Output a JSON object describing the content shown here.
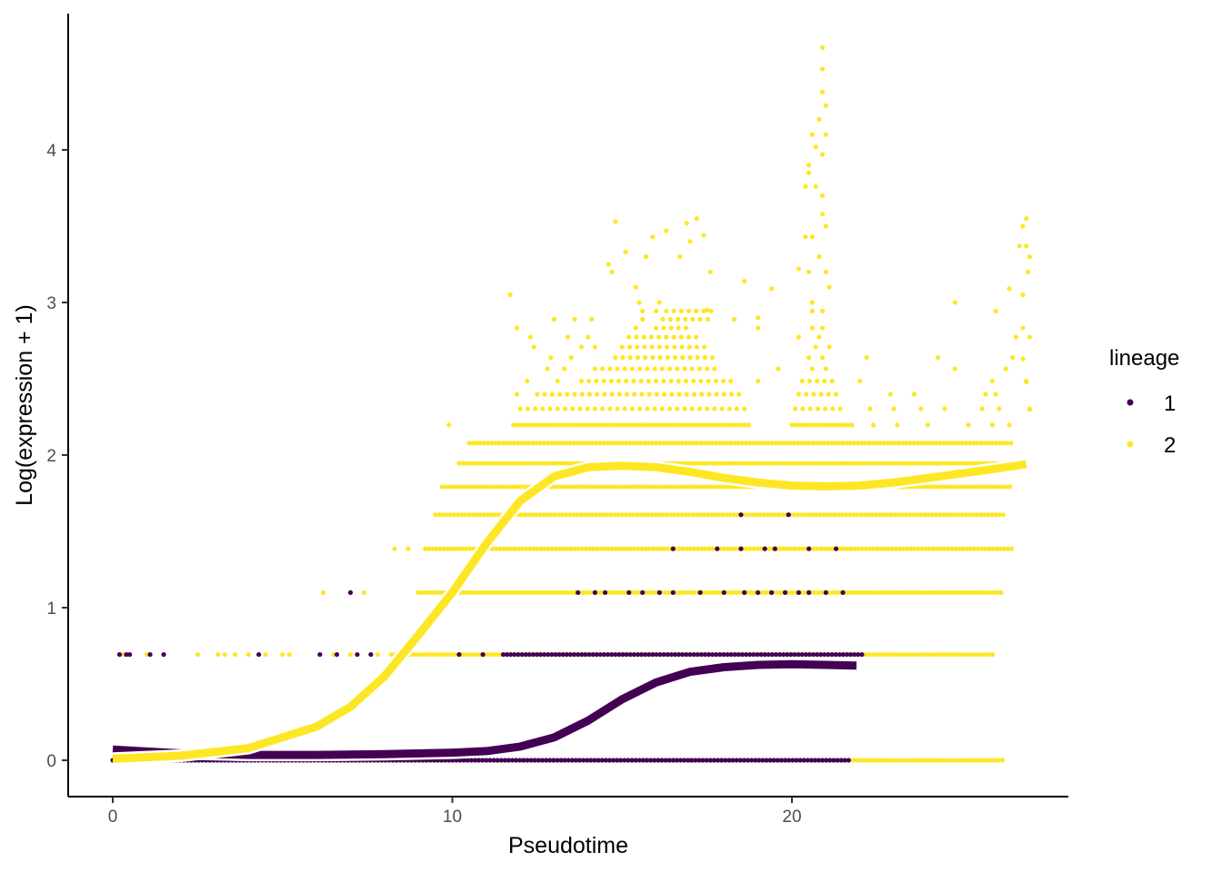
{
  "chart_data": {
    "type": "scatter",
    "title": "",
    "xlabel": "Pseudotime",
    "ylabel": "Log(expression + 1)",
    "xlim": [
      -1.3,
      28.1
    ],
    "ylim": [
      -0.23,
      4.87
    ],
    "xticks": [
      0,
      10,
      20
    ],
    "xtick_labels": [
      "0",
      "10",
      "20"
    ],
    "yticks": [
      0,
      1,
      2,
      3,
      4
    ],
    "ytick_labels": [
      "0",
      "1",
      "2",
      "3",
      "4"
    ],
    "grid": false,
    "legend": {
      "title": "lineage",
      "position": "right",
      "entries": [
        "1",
        "2"
      ]
    },
    "colors": {
      "1": "#440154",
      "2": "#FDE725"
    },
    "series": [
      {
        "name": "2",
        "levels": [
          {
            "y": 0,
            "runs": [
              [
                21.8,
                26.2
              ]
            ],
            "points": [
              16.1,
              17.0,
              17.9,
              19.4,
              20.8,
              6.5,
              9.5,
              12.1
            ]
          },
          {
            "y": 0.693,
            "runs": [
              [
                8.2,
                26.0
              ]
            ],
            "points": [
              0.3,
              1.0,
              2.5,
              3.1,
              3.3,
              3.6,
              4.0,
              4.5,
              5.0,
              5.2,
              6.5,
              7.0,
              7.8
            ]
          },
          {
            "y": 1.099,
            "runs": [
              [
                9.0,
                26.2
              ]
            ],
            "points": [
              6.2,
              7.4
            ]
          },
          {
            "y": 1.386,
            "runs": [
              [
                9.2,
                26.5
              ]
            ],
            "points": [
              8.3,
              8.7
            ]
          },
          {
            "y": 1.609,
            "runs": [
              [
                9.5,
                26.3
              ]
            ],
            "points": []
          },
          {
            "y": 1.792,
            "runs": [
              [
                9.7,
                26.5
              ]
            ],
            "points": []
          },
          {
            "y": 1.946,
            "runs": [
              [
                10.2,
                26.7
              ]
            ],
            "points": []
          },
          {
            "y": 2.079,
            "runs": [
              [
                10.5,
                26.5
              ]
            ],
            "points": []
          },
          {
            "y": 2.197,
            "runs": [
              [
                11.8,
                18.8
              ],
              [
                20.0,
                21.8
              ]
            ],
            "points": [
              9.9,
              22.4,
              23.1,
              24.0,
              25.2,
              25.9,
              26.4
            ]
          },
          {
            "y": 2.303,
            "runs": [
              [
                12.0,
                18.6
              ],
              [
                20.1,
                21.6
              ]
            ],
            "points": [
              22.3,
              23.0,
              23.8,
              24.5,
              25.6,
              26.1,
              27.0
            ]
          },
          {
            "y": 2.398,
            "runs": [
              [
                12.5,
                18.5
              ],
              [
                20.2,
                21.5
              ]
            ],
            "points": [
              11.9,
              22.9,
              23.6,
              25.7,
              26.0
            ]
          },
          {
            "y": 2.485,
            "runs": [
              [
                13.8,
                18.2
              ],
              [
                20.3,
                21.3
              ]
            ],
            "points": [
              12.2,
              13.1,
              19.0,
              22.0,
              25.9,
              26.9
            ]
          },
          {
            "y": 2.565,
            "runs": [
              [
                14.2,
                17.8
              ]
            ],
            "points": [
              12.8,
              13.3,
              19.6,
              20.6,
              21.0,
              24.8,
              26.3
            ]
          },
          {
            "y": 2.639,
            "runs": [
              [
                14.8,
                17.8
              ]
            ],
            "points": [
              12.9,
              13.5,
              20.5,
              20.9,
              22.2,
              24.3,
              26.5
            ]
          },
          {
            "y": 2.708,
            "runs": [
              [
                15.0,
                17.5
              ]
            ],
            "points": [
              12.4,
              13.8,
              14.2,
              20.7,
              21.1
            ]
          },
          {
            "y": 2.773,
            "runs": [
              [
                15.2,
                17.3
              ]
            ],
            "points": [
              12.3,
              13.4,
              14.0,
              20.2,
              20.8,
              26.6,
              27.0
            ]
          },
          {
            "y": 2.833,
            "runs": [
              [
                16.0,
                17.0
              ]
            ],
            "points": [
              11.9,
              15.4,
              19.0,
              20.6,
              20.9,
              26.8
            ]
          },
          {
            "y": 2.89,
            "runs": [
              [
                16.2,
                17.6
              ]
            ],
            "points": [
              13.0,
              13.6,
              14.1,
              15.6,
              18.3
            ]
          },
          {
            "y": 2.944,
            "runs": [
              [
                16.3,
                17.7
              ]
            ],
            "points": [
              15.6,
              16.0,
              20.6,
              20.9,
              26.0
            ]
          }
        ],
        "extra_points": [
          [
            20.9,
            4.67
          ],
          [
            20.9,
            4.53
          ],
          [
            20.9,
            4.38
          ],
          [
            21.0,
            4.29
          ],
          [
            20.8,
            4.2
          ],
          [
            20.6,
            4.1
          ],
          [
            21.0,
            4.1
          ],
          [
            20.7,
            4.02
          ],
          [
            20.5,
            3.9
          ],
          [
            20.5,
            3.85
          ],
          [
            20.9,
            3.97
          ],
          [
            20.4,
            3.76
          ],
          [
            20.7,
            3.76
          ],
          [
            20.9,
            3.7
          ],
          [
            20.9,
            3.58
          ],
          [
            21.0,
            3.5
          ],
          [
            20.4,
            3.43
          ],
          [
            20.6,
            3.43
          ],
          [
            20.8,
            3.3
          ],
          [
            20.2,
            3.22
          ],
          [
            20.5,
            3.2
          ],
          [
            21.0,
            3.2
          ],
          [
            21.1,
            3.1
          ],
          [
            20.6,
            3.0
          ],
          [
            26.9,
            3.55
          ],
          [
            26.8,
            3.5
          ],
          [
            26.7,
            3.37
          ],
          [
            26.9,
            3.37
          ],
          [
            27.0,
            3.3
          ],
          [
            26.95,
            3.2
          ],
          [
            26.8,
            3.05
          ],
          [
            26.4,
            3.09
          ],
          [
            26.8,
            2.63
          ],
          [
            26.9,
            2.48
          ],
          [
            27.0,
            2.3
          ],
          [
            24.8,
            3.0
          ],
          [
            11.7,
            3.05
          ],
          [
            14.8,
            3.53
          ],
          [
            15.1,
            3.33
          ],
          [
            14.7,
            3.2
          ],
          [
            15.4,
            3.1
          ],
          [
            15.5,
            3.0
          ],
          [
            16.3,
            3.47
          ],
          [
            16.7,
            3.3
          ],
          [
            17.0,
            3.4
          ],
          [
            17.2,
            3.55
          ],
          [
            17.4,
            3.44
          ],
          [
            17.6,
            3.2
          ],
          [
            18.6,
            3.14
          ],
          [
            19.4,
            3.09
          ],
          [
            19.0,
            2.9
          ],
          [
            15.7,
            3.3
          ],
          [
            16.1,
            3.0
          ],
          [
            17.5,
            2.95
          ],
          [
            14.6,
            3.25
          ],
          [
            16.9,
            3.52
          ],
          [
            15.9,
            3.43
          ]
        ],
        "smooth": [
          [
            0,
            0.01
          ],
          [
            2,
            0.03
          ],
          [
            4,
            0.08
          ],
          [
            6,
            0.22
          ],
          [
            7,
            0.35
          ],
          [
            8,
            0.55
          ],
          [
            9,
            0.82
          ],
          [
            10,
            1.1
          ],
          [
            11,
            1.42
          ],
          [
            12,
            1.7
          ],
          [
            13,
            1.86
          ],
          [
            14,
            1.92
          ],
          [
            15,
            1.93
          ],
          [
            16,
            1.92
          ],
          [
            17,
            1.89
          ],
          [
            18,
            1.85
          ],
          [
            19,
            1.82
          ],
          [
            20,
            1.8
          ],
          [
            21,
            1.795
          ],
          [
            22,
            1.8
          ],
          [
            23,
            1.82
          ],
          [
            24,
            1.85
          ],
          [
            25,
            1.88
          ],
          [
            26,
            1.91
          ],
          [
            26.9,
            1.94
          ]
        ]
      },
      {
        "name": "1",
        "levels": [
          {
            "y": 0,
            "runs": [
              [
                0,
                21.7
              ]
            ],
            "points": []
          },
          {
            "y": 0.693,
            "runs": [
              [
                11.5,
                22.1
              ]
            ],
            "points": [
              0.2,
              0.4,
              0.5,
              1.1,
              1.5,
              4.3,
              6.1,
              6.6,
              7.2,
              7.6,
              10.2,
              10.9
            ]
          },
          {
            "y": 1.099,
            "runs": [],
            "points": [
              7.0,
              13.7,
              14.2,
              14.5,
              15.2,
              15.6,
              16.1,
              16.5,
              17.3,
              18.0,
              18.6,
              19.0,
              19.4,
              19.8,
              20.2,
              20.5,
              21.0,
              21.5
            ]
          },
          {
            "y": 1.386,
            "runs": [],
            "points": [
              16.5,
              17.8,
              18.5,
              19.2,
              19.5,
              20.5,
              21.3
            ]
          },
          {
            "y": 1.609,
            "runs": [],
            "points": [
              18.5,
              19.9
            ]
          }
        ],
        "extra_points": [],
        "smooth": [
          [
            0,
            0.07
          ],
          [
            2,
            0.045
          ],
          [
            4,
            0.035
          ],
          [
            6,
            0.035
          ],
          [
            8,
            0.04
          ],
          [
            10,
            0.05
          ],
          [
            11,
            0.06
          ],
          [
            12,
            0.09
          ],
          [
            13,
            0.15
          ],
          [
            14,
            0.26
          ],
          [
            15,
            0.4
          ],
          [
            16,
            0.51
          ],
          [
            17,
            0.58
          ],
          [
            18,
            0.61
          ],
          [
            19,
            0.625
          ],
          [
            20,
            0.63
          ],
          [
            21,
            0.625
          ],
          [
            21.9,
            0.62
          ]
        ]
      }
    ]
  }
}
